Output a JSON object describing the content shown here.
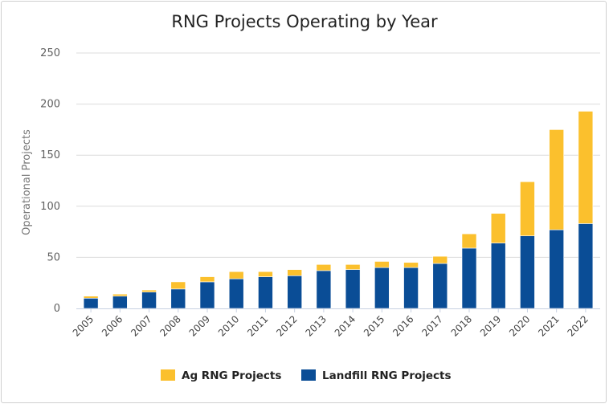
{
  "chart_data": {
    "type": "bar",
    "stacked": true,
    "title": "RNG Projects Operating by Year",
    "xlabel": "",
    "ylabel": "Operational Projects",
    "ylim": [
      0,
      250
    ],
    "yticks": [
      0,
      50,
      100,
      150,
      200,
      250
    ],
    "grid": true,
    "legend_position": "bottom-center",
    "categories": [
      "2005",
      "2006",
      "2007",
      "2008",
      "2009",
      "2010",
      "2011",
      "2012",
      "2013",
      "2014",
      "2015",
      "2016",
      "2017",
      "2018",
      "2019",
      "2020",
      "2021",
      "2022"
    ],
    "series": [
      {
        "name": "Landfill RNG Projects",
        "color": "#0a4d96",
        "values": [
          10,
          12,
          16,
          19,
          26,
          29,
          31,
          32,
          37,
          38,
          40,
          40,
          44,
          59,
          64,
          71,
          77,
          83
        ]
      },
      {
        "name": "Ag RNG Projects",
        "color": "#fbc02d",
        "values": [
          2,
          2,
          2,
          7,
          5,
          7,
          5,
          6,
          6,
          5,
          6,
          5,
          7,
          14,
          29,
          53,
          98,
          110
        ]
      }
    ],
    "legend_order": [
      "Ag RNG Projects",
      "Landfill RNG Projects"
    ]
  }
}
